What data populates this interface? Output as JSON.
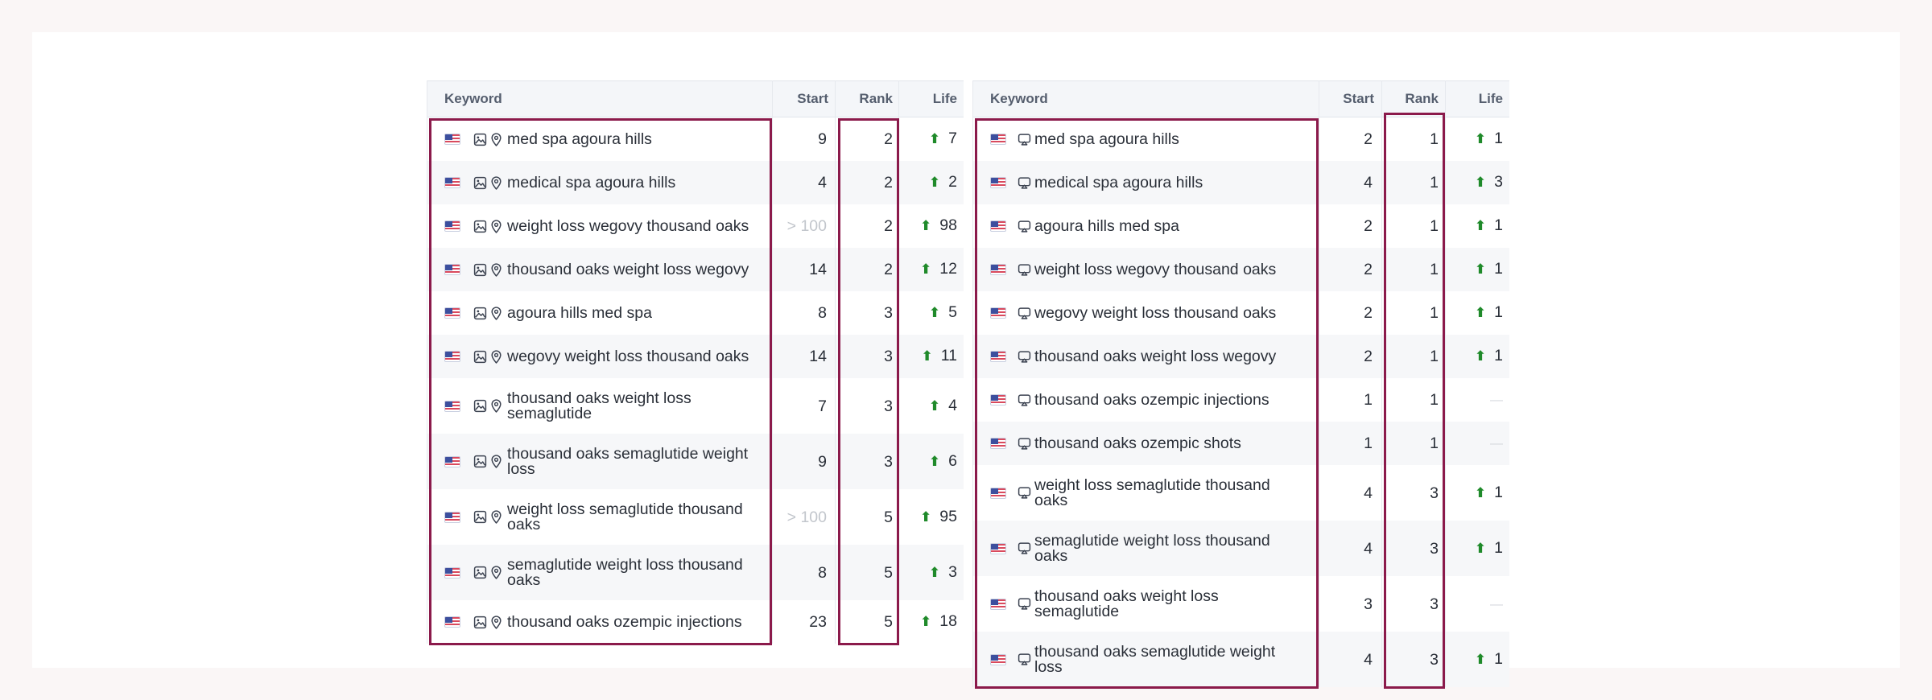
{
  "left_table": {
    "headers": {
      "keyword": "Keyword",
      "start": "Start",
      "rank": "Rank",
      "life": "Life"
    },
    "rows": [
      {
        "keyword": [
          "med spa agoura hills"
        ],
        "start": "9",
        "rank": "2",
        "life": "7",
        "trend": "up"
      },
      {
        "keyword": [
          "medical spa agoura hills"
        ],
        "start": "4",
        "rank": "2",
        "life": "2",
        "trend": "up"
      },
      {
        "keyword": [
          "weight loss wegovy thousand oaks"
        ],
        "start": "> 100",
        "start_muted": true,
        "rank": "2",
        "life": "98",
        "trend": "up"
      },
      {
        "keyword": [
          "thousand oaks weight loss wegovy"
        ],
        "start": "14",
        "rank": "2",
        "life": "12",
        "trend": "up"
      },
      {
        "keyword": [
          "agoura hills med spa"
        ],
        "start": "8",
        "rank": "3",
        "life": "5",
        "trend": "up"
      },
      {
        "keyword": [
          "wegovy weight loss thousand oaks"
        ],
        "start": "14",
        "rank": "3",
        "life": "11",
        "trend": "up"
      },
      {
        "keyword": [
          "thousand oaks weight loss",
          "semaglutide"
        ],
        "start": "7",
        "rank": "3",
        "life": "4",
        "trend": "up"
      },
      {
        "keyword": [
          "thousand oaks semaglutide weight",
          "loss"
        ],
        "start": "9",
        "rank": "3",
        "life": "6",
        "trend": "up"
      },
      {
        "keyword": [
          "weight loss semaglutide thousand",
          "oaks"
        ],
        "start": "> 100",
        "start_muted": true,
        "rank": "5",
        "life": "95",
        "trend": "up"
      },
      {
        "keyword": [
          "semaglutide weight loss thousand",
          "oaks"
        ],
        "start": "8",
        "rank": "5",
        "life": "3",
        "trend": "up"
      },
      {
        "keyword": [
          "thousand oaks ozempic injections"
        ],
        "start": "23",
        "rank": "5",
        "life": "18",
        "trend": "up"
      }
    ]
  },
  "right_table": {
    "headers": {
      "keyword": "Keyword",
      "start": "Start",
      "rank": "Rank",
      "life": "Life"
    },
    "rows": [
      {
        "keyword": [
          "med spa agoura hills"
        ],
        "start": "2",
        "rank": "1",
        "life": "1",
        "trend": "up"
      },
      {
        "keyword": [
          "medical spa agoura hills"
        ],
        "start": "4",
        "rank": "1",
        "life": "3",
        "trend": "up"
      },
      {
        "keyword": [
          "agoura hills med spa"
        ],
        "start": "2",
        "rank": "1",
        "life": "1",
        "trend": "up"
      },
      {
        "keyword": [
          "weight loss wegovy thousand oaks"
        ],
        "start": "2",
        "rank": "1",
        "life": "1",
        "trend": "up"
      },
      {
        "keyword": [
          "wegovy weight loss thousand oaks"
        ],
        "start": "2",
        "rank": "1",
        "life": "1",
        "trend": "up"
      },
      {
        "keyword": [
          "thousand oaks weight loss wegovy"
        ],
        "start": "2",
        "rank": "1",
        "life": "1",
        "trend": "up"
      },
      {
        "keyword": [
          "thousand oaks ozempic injections"
        ],
        "start": "1",
        "rank": "1",
        "life": "—",
        "trend": "none"
      },
      {
        "keyword": [
          "thousand oaks ozempic shots"
        ],
        "start": "1",
        "rank": "1",
        "life": "—",
        "trend": "none"
      },
      {
        "keyword": [
          "weight loss semaglutide thousand",
          "oaks"
        ],
        "start": "4",
        "rank": "3",
        "life": "1",
        "trend": "up"
      },
      {
        "keyword": [
          "semaglutide weight loss thousand",
          "oaks"
        ],
        "start": "4",
        "rank": "3",
        "life": "1",
        "trend": "up"
      },
      {
        "keyword": [
          "thousand oaks weight loss",
          "semaglutide"
        ],
        "start": "3",
        "rank": "3",
        "life": "—",
        "trend": "none"
      },
      {
        "keyword": [
          "thousand oaks semaglutide weight",
          "loss"
        ],
        "start": "4",
        "rank": "3",
        "life": "1",
        "trend": "up"
      }
    ]
  },
  "icons": {
    "flag": "us-flag-icon",
    "image": "image-icon",
    "location": "map-pin-icon",
    "screen": "monitor-icon",
    "trend_up": "arrow-up-icon"
  },
  "colors": {
    "highlight": "#8b1a4b",
    "trend_up": "#1f8a2a",
    "header_bg": "#f4f6f9"
  }
}
